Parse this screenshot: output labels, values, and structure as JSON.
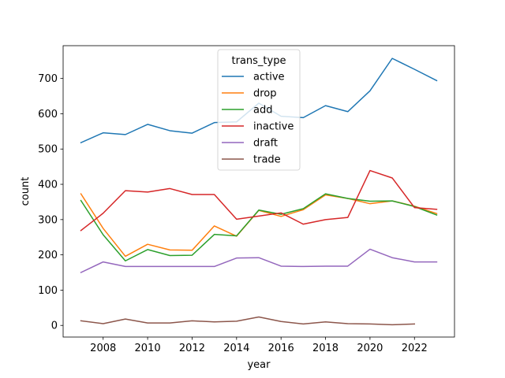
{
  "chart_data": {
    "type": "line",
    "title": "",
    "xlabel": "year",
    "ylabel": "count",
    "xlim": [
      2006.2,
      2023.8
    ],
    "ylim": [
      -33,
      793
    ],
    "xticks": [
      2008,
      2010,
      2012,
      2014,
      2016,
      2018,
      2020,
      2022
    ],
    "yticks": [
      0,
      100,
      200,
      300,
      400,
      500,
      600,
      700
    ],
    "grid": false,
    "legend": {
      "title": "trans_type",
      "placement": "upper center"
    },
    "series": [
      {
        "name": "active",
        "color": "#1f77b4",
        "x": [
          2007,
          2008,
          2009,
          2010,
          2011,
          2012,
          2013,
          2014,
          2015,
          2016,
          2017,
          2018,
          2019,
          2020,
          2021,
          2022,
          2023
        ],
        "y": [
          518,
          546,
          541,
          570,
          552,
          545,
          575,
          577,
          630,
          593,
          589,
          623,
          606,
          665,
          757,
          726,
          694
        ]
      },
      {
        "name": "drop",
        "color": "#ff7f0e",
        "x": [
          2007,
          2008,
          2009,
          2010,
          2011,
          2012,
          2013,
          2014,
          2015,
          2016,
          2017,
          2018,
          2019,
          2020,
          2021,
          2022,
          2023
        ],
        "y": [
          373,
          275,
          196,
          230,
          214,
          213,
          282,
          253,
          326,
          309,
          328,
          370,
          360,
          345,
          353,
          338,
          317
        ]
      },
      {
        "name": "add",
        "color": "#2ca02c",
        "x": [
          2007,
          2008,
          2009,
          2010,
          2011,
          2012,
          2013,
          2014,
          2015,
          2016,
          2017,
          2018,
          2019,
          2020,
          2021,
          2022,
          2023
        ],
        "y": [
          354,
          257,
          183,
          215,
          198,
          199,
          258,
          254,
          327,
          315,
          331,
          373,
          360,
          352,
          353,
          337,
          313
        ]
      },
      {
        "name": "inactive",
        "color": "#d62728",
        "x": [
          2007,
          2008,
          2009,
          2010,
          2011,
          2012,
          2013,
          2014,
          2015,
          2016,
          2017,
          2018,
          2019,
          2020,
          2021,
          2022,
          2023
        ],
        "y": [
          269,
          318,
          382,
          378,
          388,
          371,
          371,
          301,
          310,
          319,
          287,
          300,
          306,
          439,
          418,
          334,
          329
        ]
      },
      {
        "name": "draft",
        "color": "#9467bd",
        "x": [
          2007,
          2008,
          2009,
          2010,
          2011,
          2012,
          2013,
          2014,
          2015,
          2016,
          2017,
          2018,
          2019,
          2020,
          2021,
          2022,
          2023
        ],
        "y": [
          150,
          180,
          167,
          167,
          167,
          167,
          167,
          191,
          192,
          168,
          167,
          168,
          168,
          216,
          192,
          180,
          180
        ]
      },
      {
        "name": "trade",
        "color": "#8c564b",
        "x": [
          2007,
          2008,
          2009,
          2010,
          2011,
          2012,
          2013,
          2014,
          2015,
          2016,
          2017,
          2018,
          2019,
          2020,
          2021,
          2022
        ],
        "y": [
          13,
          5,
          18,
          7,
          7,
          13,
          10,
          12,
          24,
          11,
          4,
          10,
          5,
          4,
          2,
          4
        ]
      }
    ]
  }
}
